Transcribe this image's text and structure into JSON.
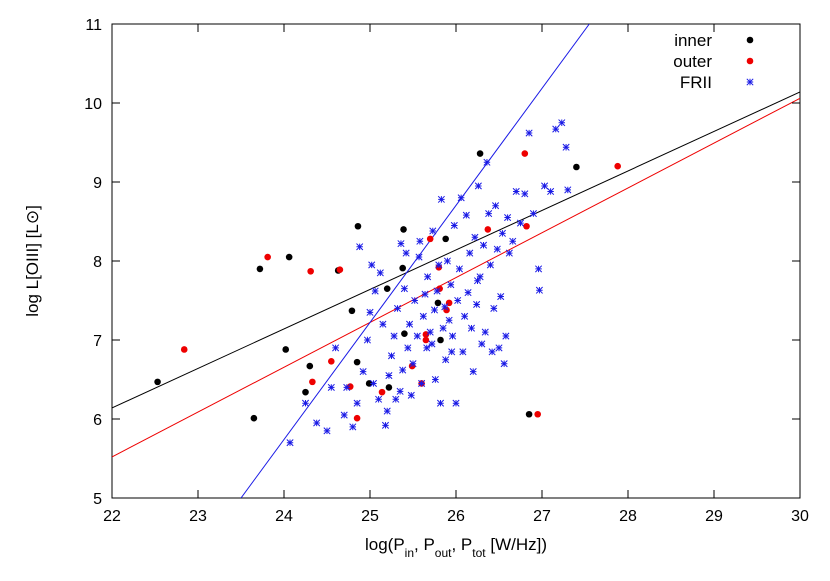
{
  "chart_data": {
    "type": "scatter",
    "title": "",
    "xlabel": {
      "prefix": "log(P",
      "parts": [
        [
          "in",
          ", P"
        ],
        [
          "out",
          ", P"
        ],
        [
          "tot",
          " [W/Hz])"
        ]
      ]
    },
    "ylabel": "log L[OIII] [L⊙]",
    "xlim": [
      22,
      30
    ],
    "ylim": [
      5,
      11
    ],
    "xticks": [
      22,
      23,
      24,
      25,
      26,
      27,
      28,
      29,
      30
    ],
    "yticks": [
      5,
      6,
      7,
      8,
      9,
      10,
      11
    ],
    "grid": false,
    "legend_position": "top-right",
    "series": [
      {
        "name": "inner",
        "marker": "filled-circle",
        "color": "#000000",
        "points": [
          [
            22.53,
            6.47
          ],
          [
            23.65,
            6.01
          ],
          [
            23.72,
            7.9
          ],
          [
            24.06,
            8.05
          ],
          [
            24.02,
            6.88
          ],
          [
            24.25,
            6.34
          ],
          [
            24.3,
            6.67
          ],
          [
            24.63,
            7.88
          ],
          [
            24.79,
            7.37
          ],
          [
            24.86,
            8.44
          ],
          [
            24.85,
            6.72
          ],
          [
            24.99,
            6.45
          ],
          [
            25.2,
            7.65
          ],
          [
            25.22,
            6.4
          ],
          [
            25.38,
            7.91
          ],
          [
            25.39,
            8.4
          ],
          [
            25.4,
            7.08
          ],
          [
            25.79,
            7.47
          ],
          [
            25.82,
            7.0
          ],
          [
            25.88,
            8.28
          ],
          [
            26.28,
            9.36
          ],
          [
            26.85,
            6.06
          ],
          [
            27.4,
            9.19
          ],
          [
            29.4,
            10.79
          ]
        ]
      },
      {
        "name": "outer",
        "marker": "filled-circle",
        "color": "#ee0000",
        "points": [
          [
            22.84,
            6.88
          ],
          [
            23.81,
            8.05
          ],
          [
            24.31,
            7.87
          ],
          [
            24.33,
            6.47
          ],
          [
            24.55,
            6.73
          ],
          [
            24.65,
            7.89
          ],
          [
            24.77,
            6.41
          ],
          [
            24.85,
            6.01
          ],
          [
            25.14,
            6.34
          ],
          [
            25.49,
            6.67
          ],
          [
            25.6,
            6.45
          ],
          [
            25.65,
            7.07
          ],
          [
            25.65,
            7.0
          ],
          [
            25.7,
            8.28
          ],
          [
            25.8,
            7.92
          ],
          [
            25.81,
            7.65
          ],
          [
            25.89,
            7.38
          ],
          [
            25.92,
            7.47
          ],
          [
            26.37,
            8.4
          ],
          [
            26.8,
            9.36
          ],
          [
            26.82,
            8.44
          ],
          [
            26.95,
            6.06
          ],
          [
            27.88,
            9.2
          ],
          [
            29.4,
            10.61
          ]
        ]
      },
      {
        "name": "FRII",
        "marker": "asterisk",
        "color": "#1a1ae6",
        "points": [
          [
            24.07,
            5.7
          ],
          [
            24.25,
            6.2
          ],
          [
            24.38,
            5.95
          ],
          [
            24.5,
            5.85
          ],
          [
            24.55,
            6.4
          ],
          [
            24.6,
            6.9
          ],
          [
            24.7,
            6.05
          ],
          [
            24.73,
            6.4
          ],
          [
            24.8,
            5.9
          ],
          [
            24.85,
            6.2
          ],
          [
            24.88,
            8.18
          ],
          [
            24.92,
            6.6
          ],
          [
            24.97,
            7.0
          ],
          [
            25.0,
            7.35
          ],
          [
            25.02,
            7.95
          ],
          [
            25.04,
            6.45
          ],
          [
            25.06,
            7.62
          ],
          [
            25.1,
            6.25
          ],
          [
            25.12,
            7.85
          ],
          [
            25.15,
            7.2
          ],
          [
            25.18,
            5.92
          ],
          [
            25.2,
            6.1
          ],
          [
            25.22,
            6.55
          ],
          [
            25.25,
            6.8
          ],
          [
            25.28,
            7.05
          ],
          [
            25.3,
            6.25
          ],
          [
            25.32,
            7.4
          ],
          [
            25.35,
            6.35
          ],
          [
            25.38,
            6.62
          ],
          [
            25.4,
            7.65
          ],
          [
            25.42,
            8.1
          ],
          [
            25.44,
            6.9
          ],
          [
            25.46,
            7.2
          ],
          [
            25.48,
            6.3
          ],
          [
            25.5,
            6.7
          ],
          [
            25.52,
            7.5
          ],
          [
            25.55,
            7.05
          ],
          [
            25.57,
            8.05
          ],
          [
            25.6,
            6.45
          ],
          [
            25.62,
            7.3
          ],
          [
            25.64,
            7.58
          ],
          [
            25.66,
            6.9
          ],
          [
            25.67,
            7.8
          ],
          [
            25.7,
            7.1
          ],
          [
            25.72,
            6.95
          ],
          [
            25.73,
            8.38
          ],
          [
            25.75,
            7.38
          ],
          [
            25.76,
            6.5
          ],
          [
            25.78,
            7.62
          ],
          [
            25.8,
            7.95
          ],
          [
            25.82,
            6.2
          ],
          [
            25.83,
            8.78
          ],
          [
            25.85,
            7.15
          ],
          [
            25.87,
            7.42
          ],
          [
            25.88,
            6.75
          ],
          [
            25.9,
            8.0
          ],
          [
            25.92,
            7.25
          ],
          [
            25.94,
            7.7
          ],
          [
            25.96,
            7.05
          ],
          [
            25.98,
            8.45
          ],
          [
            26.0,
            6.2
          ],
          [
            26.02,
            7.5
          ],
          [
            26.04,
            7.9
          ],
          [
            26.06,
            8.8
          ],
          [
            26.08,
            6.85
          ],
          [
            26.1,
            7.3
          ],
          [
            26.12,
            8.58
          ],
          [
            26.14,
            7.6
          ],
          [
            26.16,
            8.1
          ],
          [
            26.18,
            7.15
          ],
          [
            26.2,
            6.6
          ],
          [
            26.22,
            8.3
          ],
          [
            26.24,
            7.45
          ],
          [
            26.26,
            8.95
          ],
          [
            26.28,
            7.8
          ],
          [
            26.3,
            6.95
          ],
          [
            26.32,
            8.2
          ],
          [
            26.34,
            7.1
          ],
          [
            26.36,
            9.25
          ],
          [
            26.38,
            8.6
          ],
          [
            26.4,
            7.95
          ],
          [
            26.42,
            6.85
          ],
          [
            26.44,
            7.4
          ],
          [
            26.46,
            8.7
          ],
          [
            26.48,
            8.15
          ],
          [
            26.5,
            6.9
          ],
          [
            26.52,
            7.55
          ],
          [
            26.54,
            8.35
          ],
          [
            26.56,
            6.7
          ],
          [
            26.58,
            7.05
          ],
          [
            26.6,
            8.55
          ],
          [
            26.62,
            8.1
          ],
          [
            26.66,
            8.25
          ],
          [
            26.7,
            8.88
          ],
          [
            26.75,
            8.48
          ],
          [
            26.8,
            8.85
          ],
          [
            26.85,
            9.62
          ],
          [
            26.9,
            8.6
          ],
          [
            26.96,
            7.9
          ],
          [
            26.97,
            7.63
          ],
          [
            27.03,
            8.95
          ],
          [
            27.1,
            8.88
          ],
          [
            27.16,
            9.67
          ],
          [
            27.23,
            9.75
          ],
          [
            27.28,
            9.44
          ],
          [
            27.3,
            8.9
          ],
          [
            25.36,
            8.22
          ],
          [
            25.58,
            8.25
          ],
          [
            25.95,
            6.85
          ],
          [
            26.25,
            7.75
          ],
          [
            29.4,
            10.3
          ]
        ]
      }
    ],
    "fits": [
      {
        "color": "#000000",
        "x": [
          22,
          30
        ],
        "y": [
          6.14,
          10.14
        ]
      },
      {
        "color": "#ee0000",
        "x": [
          22,
          30
        ],
        "y": [
          5.52,
          10.06
        ]
      },
      {
        "color": "#1a1ae6",
        "x": [
          23.5,
          27.55
        ],
        "y": [
          5.0,
          11.0
        ]
      }
    ]
  }
}
